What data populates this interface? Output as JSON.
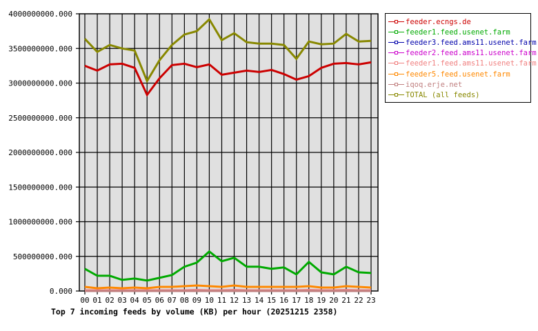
{
  "chart_data": {
    "type": "line",
    "title": "Top 7 incoming feeds by volume (KB) per hour (20251215 2358)",
    "xlabel": "",
    "ylabel": "",
    "ylim": [
      0,
      4000000000
    ],
    "grid": true,
    "legend_position": "right",
    "y_ticks": [
      "0.000",
      "500000000.000",
      "1000000000.000",
      "1500000000.000",
      "2000000000.000",
      "2500000000.000",
      "3000000000.000",
      "3500000000.000",
      "4000000000.000"
    ],
    "x": [
      "00",
      "01",
      "02",
      "03",
      "04",
      "05",
      "06",
      "07",
      "08",
      "09",
      "10",
      "11",
      "12",
      "13",
      "14",
      "15",
      "16",
      "17",
      "18",
      "19",
      "20",
      "21",
      "22",
      "23"
    ],
    "series": [
      {
        "name": "feeder.ecngs.de",
        "color": "#cc0000",
        "values": [
          3250000000,
          3180000000,
          3270000000,
          3280000000,
          3220000000,
          2830000000,
          3070000000,
          3260000000,
          3280000000,
          3230000000,
          3270000000,
          3120000000,
          3150000000,
          3180000000,
          3160000000,
          3190000000,
          3130000000,
          3050000000,
          3100000000,
          3220000000,
          3280000000,
          3290000000,
          3270000000,
          3300000000
        ]
      },
      {
        "name": "feeder1.feed.usenet.farm",
        "color": "#00aa00",
        "values": [
          320000000,
          220000000,
          220000000,
          160000000,
          180000000,
          150000000,
          190000000,
          230000000,
          350000000,
          410000000,
          570000000,
          430000000,
          480000000,
          350000000,
          350000000,
          320000000,
          340000000,
          240000000,
          420000000,
          270000000,
          240000000,
          350000000,
          270000000,
          260000000
        ]
      },
      {
        "name": "feeder3.feed.ams11.usenet.farm",
        "color": "#0000aa",
        "values": [
          0,
          0,
          0,
          0,
          0,
          0,
          10000000,
          10000000,
          10000000,
          10000000,
          10000000,
          10000000,
          0,
          0,
          0,
          0,
          0,
          0,
          0,
          0,
          0,
          0,
          0,
          0
        ]
      },
      {
        "name": "feeder2.feed.ams11.usenet.farm",
        "color": "#cc00cc",
        "values": [
          0,
          0,
          0,
          0,
          10000000,
          0,
          0,
          0,
          0,
          0,
          0,
          0,
          0,
          0,
          0,
          0,
          0,
          0,
          0,
          0,
          0,
          0,
          0,
          0
        ]
      },
      {
        "name": "feeder1.feed.ams11.usenet.farm",
        "color": "#f08080",
        "values": [
          10000000,
          10000000,
          10000000,
          10000000,
          10000000,
          10000000,
          10000000,
          10000000,
          10000000,
          15000000,
          10000000,
          10000000,
          15000000,
          10000000,
          10000000,
          10000000,
          10000000,
          10000000,
          15000000,
          10000000,
          10000000,
          15000000,
          10000000,
          10000000
        ]
      },
      {
        "name": "feeder5.feed.usenet.farm",
        "color": "#ff8800",
        "values": [
          60000000,
          40000000,
          50000000,
          40000000,
          50000000,
          40000000,
          60000000,
          60000000,
          70000000,
          80000000,
          70000000,
          60000000,
          80000000,
          60000000,
          60000000,
          60000000,
          60000000,
          60000000,
          70000000,
          50000000,
          50000000,
          70000000,
          60000000,
          50000000
        ]
      },
      {
        "name": "iqoq.erje.net",
        "color": "#c08080",
        "values": [
          0,
          0,
          0,
          0,
          0,
          0,
          0,
          0,
          0,
          0,
          0,
          0,
          0,
          0,
          0,
          0,
          0,
          0,
          0,
          0,
          0,
          0,
          0,
          0
        ]
      },
      {
        "name": "TOTAL (all feeds)",
        "color": "#888800",
        "values": [
          3640000000,
          3450000000,
          3550000000,
          3500000000,
          3470000000,
          3030000000,
          3330000000,
          3550000000,
          3700000000,
          3750000000,
          3920000000,
          3620000000,
          3720000000,
          3590000000,
          3570000000,
          3570000000,
          3550000000,
          3350000000,
          3600000000,
          3560000000,
          3570000000,
          3710000000,
          3600000000,
          3610000000
        ]
      }
    ]
  },
  "legend": {
    "items": [
      {
        "label": "feeder.ecngs.de",
        "color": "#cc0000"
      },
      {
        "label": "feeder1.feed.usenet.farm",
        "color": "#00aa00"
      },
      {
        "label": "feeder3.feed.ams11.usenet.farm",
        "color": "#0000aa"
      },
      {
        "label": "feeder2.feed.ams11.usenet.farm",
        "color": "#cc00cc"
      },
      {
        "label": "feeder1.feed.ams11.usenet.farm",
        "color": "#f08080"
      },
      {
        "label": "feeder5.feed.usenet.farm",
        "color": "#ff8800"
      },
      {
        "label": "iqoq.erje.net",
        "color": "#c08080"
      },
      {
        "label": "TOTAL (all feeds)",
        "color": "#888800"
      }
    ]
  },
  "colors": {
    "plot_background": "#e0e0e0",
    "grid": "#000000"
  }
}
